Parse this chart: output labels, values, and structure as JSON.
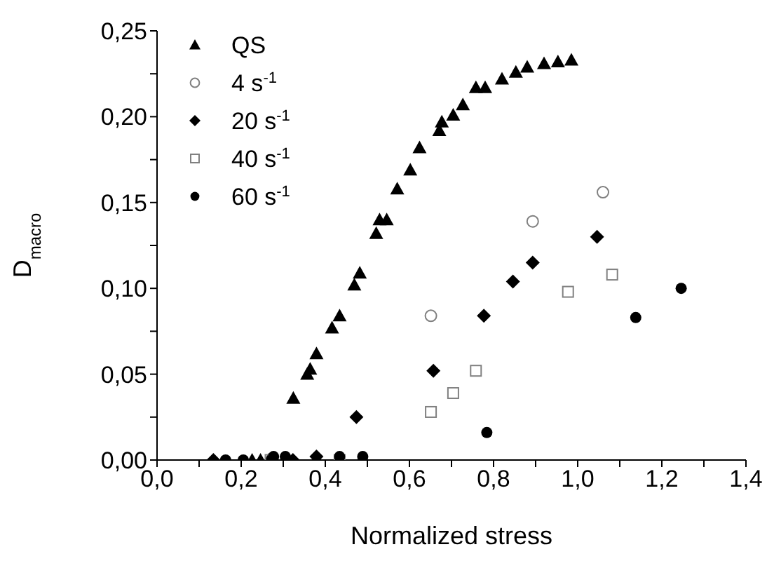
{
  "chart_data": {
    "type": "scatter",
    "xlabel": "Normalized stress",
    "ylabel": "D$_{macro}$",
    "xlim": [
      0,
      1.4
    ],
    "ylim": [
      0,
      0.25
    ],
    "xticks": [
      {
        "value": 0,
        "label": "0,0"
      },
      {
        "value": 0.1,
        "label": null
      },
      {
        "value": 0.2,
        "label": "0,2"
      },
      {
        "value": 0.3,
        "label": null
      },
      {
        "value": 0.4,
        "label": "0,4"
      },
      {
        "value": 0.5,
        "label": null
      },
      {
        "value": 0.6,
        "label": "0,6"
      },
      {
        "value": 0.7,
        "label": null
      },
      {
        "value": 0.8,
        "label": "0,8"
      },
      {
        "value": 0.9,
        "label": null
      },
      {
        "value": 1,
        "label": "1,0"
      },
      {
        "value": 1.1,
        "label": null
      },
      {
        "value": 1.2,
        "label": "1,2"
      },
      {
        "value": 1.3,
        "label": null
      },
      {
        "value": 1.4,
        "label": "1,4"
      }
    ],
    "yticks": [
      {
        "value": 0,
        "label": "0,00"
      },
      {
        "value": 0.025,
        "label": null
      },
      {
        "value": 0.05,
        "label": "0,05"
      },
      {
        "value": 0.075,
        "label": null
      },
      {
        "value": 0.1,
        "label": "0,10"
      },
      {
        "value": 0.125,
        "label": null
      },
      {
        "value": 0.15,
        "label": "0,15"
      },
      {
        "value": 0.175,
        "label": null
      },
      {
        "value": 0.2,
        "label": "0,20"
      },
      {
        "value": 0.225,
        "label": null
      },
      {
        "value": 0.25,
        "label": "0,25"
      }
    ],
    "grid": false,
    "legend": "top left",
    "series": [
      {
        "name": "QS",
        "color": "#000000",
        "marker": "triangle",
        "x": [
          0.226,
          0.246,
          0.265,
          0.324,
          0.357,
          0.364,
          0.379,
          0.416,
          0.434,
          0.469,
          0.482,
          0.521,
          0.529,
          0.546,
          0.571,
          0.602,
          0.624,
          0.671,
          0.677,
          0.704,
          0.727,
          0.758,
          0.78,
          0.82,
          0.853,
          0.88,
          0.92,
          0.953,
          0.985
        ],
        "values": [
          0,
          0,
          0,
          0.036,
          0.05,
          0.053,
          0.062,
          0.077,
          0.084,
          0.102,
          0.109,
          0.132,
          0.14,
          0.14,
          0.158,
          0.169,
          0.182,
          0.192,
          0.197,
          0.201,
          0.207,
          0.217,
          0.217,
          0.222,
          0.226,
          0.229,
          0.231,
          0.232,
          0.233
        ]
      },
      {
        "name": "4 s$^{-1}$",
        "color": "#808080",
        "marker": "circle",
        "x": [
          0.651,
          0.893,
          1.06
        ],
        "values": [
          0.084,
          0.139,
          0.156
        ]
      },
      {
        "name": "20 s$^{-1}$",
        "color": "#000000",
        "marker": "diamond",
        "x": [
          0.134,
          0.323,
          0.379,
          0.474,
          0.657,
          0.777,
          0.846,
          0.893,
          1.046
        ],
        "values": [
          0,
          0,
          0.002,
          0.025,
          0.052,
          0.084,
          0.104,
          0.115,
          0.13
        ]
      },
      {
        "name": "40 s$^{-1}$",
        "color": "#808080",
        "marker": "square",
        "x": [
          0.27,
          0.434,
          0.651,
          0.704,
          0.758,
          0.977,
          1.082
        ],
        "values": [
          0,
          0,
          0.028,
          0.039,
          0.052,
          0.098,
          0.108
        ]
      },
      {
        "name": "60 s$^{-1}$",
        "color": "#000000",
        "marker": "circle",
        "x": [
          0.163,
          0.205,
          0.277,
          0.305,
          0.434,
          0.489,
          0.784,
          1.138,
          1.246
        ],
        "values": [
          0,
          0,
          0.002,
          0.002,
          0.002,
          0.002,
          0.016,
          0.083,
          0.1
        ]
      }
    ]
  }
}
